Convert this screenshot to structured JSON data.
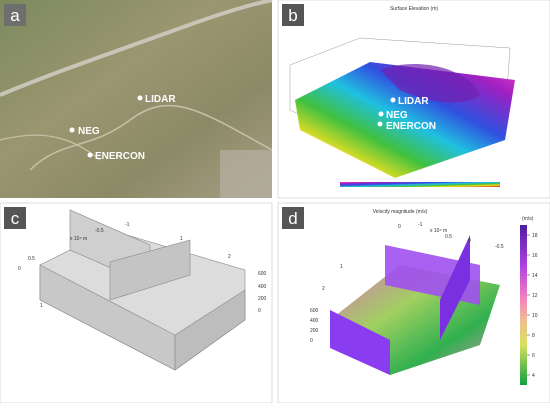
{
  "panels": [
    {
      "label": "a",
      "markers": [
        "LIDAR",
        "NEG",
        "ENERCON"
      ]
    },
    {
      "label": "b",
      "title": "Surface Elevation (m)",
      "markers": [
        "LIDAR",
        "NEG",
        "ENERCON"
      ]
    },
    {
      "label": "c",
      "axis_labels": [
        "x 10⁴ m",
        "-0.5",
        "-1",
        "1",
        "0.5",
        "0",
        "600",
        "400",
        "200",
        "0",
        "2",
        "1"
      ]
    },
    {
      "label": "d",
      "title": "Velocity magnitude (m/s)",
      "unit": "(m/s)",
      "colorbar_ticks": [
        18,
        16,
        14,
        12,
        10,
        8,
        6,
        4
      ],
      "axis_labels": [
        "x 10⁴ m",
        "0",
        "-1",
        "0.5",
        "0",
        "-0.5",
        "1",
        "2",
        "600",
        "400",
        "200",
        "0"
      ]
    }
  ]
}
